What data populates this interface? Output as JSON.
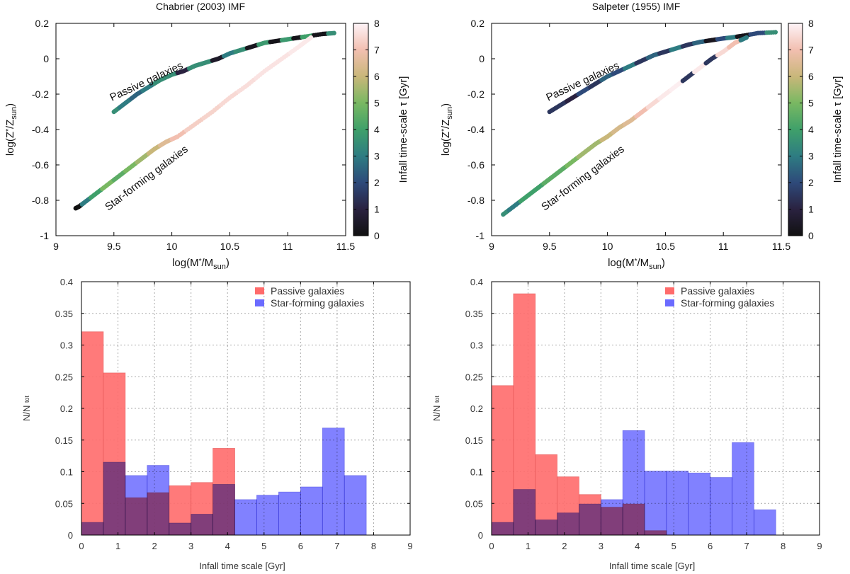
{
  "chart_data": [
    {
      "id": "scatter-chabrier",
      "type": "scatter",
      "title": "Chabrier (2003) IMF",
      "xlabel": "log(M*/Msun)",
      "ylabel": "log(Z*/Zsun)",
      "xlim": [
        9,
        11.5
      ],
      "ylim": [
        -1,
        0.2
      ],
      "xticks": [
        "9",
        "9.5",
        "10",
        "10.5",
        "11",
        "11.5"
      ],
      "yticks": [
        "-1",
        "-0.8",
        "-0.6",
        "-0.4",
        "-0.2",
        "0",
        "0.2"
      ],
      "colorbar": {
        "label": "Infall time-scale τ  [Gyr]",
        "range": [
          0,
          8
        ],
        "ticks": [
          "0",
          "1",
          "2",
          "3",
          "4",
          "5",
          "6",
          "7",
          "8"
        ]
      },
      "annotations": [
        "Passive galaxies",
        "Star-forming galaxies"
      ],
      "series": [
        {
          "name": "Passive galaxies",
          "x_range": [
            9.5,
            11.4
          ],
          "points": [
            [
              9.5,
              -0.3,
              3.5
            ],
            [
              9.6,
              -0.25,
              3
            ],
            [
              9.7,
              -0.2,
              2.5
            ],
            [
              9.8,
              -0.16,
              3
            ],
            [
              9.9,
              -0.12,
              3.5
            ],
            [
              10.0,
              -0.09,
              3.5
            ],
            [
              10.1,
              -0.07,
              1
            ],
            [
              10.2,
              -0.04,
              3.5
            ],
            [
              10.3,
              -0.02,
              3.5
            ],
            [
              10.4,
              0.0,
              0.5
            ],
            [
              10.5,
              0.03,
              3
            ],
            [
              10.6,
              0.05,
              3.5
            ],
            [
              10.7,
              0.07,
              0.3
            ],
            [
              10.8,
              0.09,
              3.8
            ],
            [
              10.9,
              0.1,
              0.2
            ],
            [
              11.0,
              0.11,
              3.8
            ],
            [
              11.1,
              0.12,
              0.2
            ],
            [
              11.15,
              0.125,
              4
            ],
            [
              11.3,
              0.14,
              0.2
            ],
            [
              11.4,
              0.145,
              3.5
            ]
          ]
        },
        {
          "name": "Star-forming galaxies",
          "x_range": [
            9.17,
            11.2
          ],
          "points": [
            [
              9.17,
              -0.845,
              0
            ],
            [
              9.2,
              -0.835,
              0
            ],
            [
              9.25,
              -0.81,
              3
            ],
            [
              9.35,
              -0.76,
              4
            ],
            [
              9.45,
              -0.71,
              5
            ],
            [
              9.55,
              -0.66,
              4.5
            ],
            [
              9.65,
              -0.61,
              5
            ],
            [
              9.75,
              -0.56,
              5.5
            ],
            [
              9.85,
              -0.51,
              6
            ],
            [
              9.95,
              -0.47,
              6.5
            ],
            [
              10.05,
              -0.44,
              7
            ],
            [
              10.2,
              -0.37,
              7.3
            ],
            [
              10.35,
              -0.3,
              7.4
            ],
            [
              10.5,
              -0.22,
              7.5
            ],
            [
              10.65,
              -0.15,
              7.6
            ],
            [
              10.8,
              -0.07,
              7.7
            ],
            [
              10.95,
              0.0,
              7.7
            ],
            [
              11.1,
              0.07,
              7.8
            ],
            [
              11.2,
              0.12,
              7.8
            ]
          ]
        }
      ]
    },
    {
      "id": "scatter-salpeter",
      "type": "scatter",
      "title": "Salpeter (1955) IMF",
      "xlabel": "log(M*/Msun)",
      "ylabel": "log(Z*/Zsun)",
      "xlim": [
        9,
        11.5
      ],
      "ylim": [
        -1,
        0.2
      ],
      "xticks": [
        "9",
        "9.5",
        "10",
        "10.5",
        "11",
        "11.5"
      ],
      "yticks": [
        "-1",
        "-0.8",
        "-0.6",
        "-0.4",
        "-0.2",
        "0",
        "0.2"
      ],
      "colorbar": {
        "label": "Infall time-scale τ  [Gyr]",
        "range": [
          0,
          8
        ],
        "ticks": [
          "0",
          "1",
          "2",
          "3",
          "4",
          "5",
          "6",
          "7",
          "8"
        ]
      },
      "annotations": [
        "Passive galaxies",
        "Star-forming galaxies"
      ],
      "series": [
        {
          "name": "Passive galaxies",
          "x_range": [
            9.5,
            11.45
          ],
          "points": [
            [
              9.5,
              -0.3,
              1.5
            ],
            [
              9.6,
              -0.26,
              1.5
            ],
            [
              9.7,
              -0.22,
              1
            ],
            [
              9.8,
              -0.18,
              2
            ],
            [
              9.9,
              -0.14,
              1.5
            ],
            [
              10.0,
              -0.1,
              2.5
            ],
            [
              10.1,
              -0.07,
              2
            ],
            [
              10.2,
              -0.04,
              3
            ],
            [
              10.3,
              -0.01,
              1.5
            ],
            [
              10.4,
              0.02,
              2.5
            ],
            [
              10.5,
              0.04,
              1.5
            ],
            [
              10.6,
              0.06,
              3
            ],
            [
              10.7,
              0.08,
              1.5
            ],
            [
              10.8,
              0.095,
              2.5
            ],
            [
              10.9,
              0.105,
              0.3
            ],
            [
              11.0,
              0.115,
              2
            ],
            [
              11.07,
              0.12,
              3
            ],
            [
              11.17,
              0.13,
              0.2
            ],
            [
              11.3,
              0.145,
              2
            ],
            [
              11.45,
              0.15,
              3.5
            ]
          ]
        },
        {
          "name": "Star-forming galaxies",
          "x_range": [
            9.1,
            11.2
          ],
          "points": [
            [
              9.1,
              -0.88,
              3.5
            ],
            [
              9.2,
              -0.83,
              3
            ],
            [
              9.3,
              -0.78,
              4
            ],
            [
              9.4,
              -0.73,
              4
            ],
            [
              9.5,
              -0.68,
              4.5
            ],
            [
              9.6,
              -0.63,
              4.5
            ],
            [
              9.7,
              -0.58,
              5
            ],
            [
              9.8,
              -0.53,
              5.5
            ],
            [
              9.9,
              -0.48,
              5.5
            ],
            [
              10.0,
              -0.44,
              6
            ],
            [
              10.1,
              -0.39,
              6.3
            ],
            [
              10.2,
              -0.35,
              6.5
            ],
            [
              10.3,
              -0.3,
              7
            ],
            [
              10.4,
              -0.25,
              7.5
            ],
            [
              10.5,
              -0.2,
              7.8
            ],
            [
              10.6,
              -0.15,
              7.9
            ],
            [
              10.7,
              -0.1,
              1.5
            ],
            [
              10.8,
              -0.05,
              7.8
            ],
            [
              10.9,
              0.0,
              1.5
            ],
            [
              11.0,
              0.04,
              7.5
            ],
            [
              11.1,
              0.09,
              7
            ],
            [
              11.2,
              0.12,
              3
            ]
          ]
        }
      ]
    },
    {
      "id": "hist-chabrier",
      "type": "bar",
      "title": "",
      "xlabel": "Infall time scale [Gyr]",
      "ylabel": "N/N tot",
      "xlim": [
        0,
        9
      ],
      "ylim": [
        0,
        0.4
      ],
      "xticks": [
        "0",
        "1",
        "2",
        "3",
        "4",
        "5",
        "6",
        "7",
        "8",
        "9"
      ],
      "yticks": [
        "0",
        "0.05",
        "0.1",
        "0.15",
        "0.2",
        "0.25",
        "0.3",
        "0.35",
        "0.4"
      ],
      "grid": true,
      "legend_position": "top-right",
      "bin_edges": [
        0,
        0.6,
        1.2,
        1.8,
        2.4,
        3.0,
        3.6,
        4.2,
        4.8,
        5.4,
        6.0,
        6.6,
        7.2,
        7.8
      ],
      "series": [
        {
          "name": "Passive galaxies",
          "color": "#ff6b6b",
          "values": [
            0.321,
            0.256,
            0.059,
            0.067,
            0.078,
            0.083,
            0.137,
            0,
            0,
            0,
            0,
            0,
            0
          ]
        },
        {
          "name": "Star-forming galaxies",
          "color": "#6b6bff",
          "values": [
            0.02,
            0.115,
            0.094,
            0.11,
            0.019,
            0.033,
            0.08,
            0.056,
            0.063,
            0.068,
            0.076,
            0.169,
            0.094
          ]
        }
      ]
    },
    {
      "id": "hist-salpeter",
      "type": "bar",
      "title": "",
      "xlabel": "Infall time scale [Gyr]",
      "ylabel": "N/N tot",
      "xlim": [
        0,
        9
      ],
      "ylim": [
        0,
        0.4
      ],
      "xticks": [
        "0",
        "1",
        "2",
        "3",
        "4",
        "5",
        "6",
        "7",
        "8",
        "9"
      ],
      "yticks": [
        "0",
        "0.05",
        "0.1",
        "0.15",
        "0.2",
        "0.25",
        "0.3",
        "0.35",
        "0.4"
      ],
      "grid": true,
      "legend_position": "top-right",
      "bin_edges": [
        0,
        0.6,
        1.2,
        1.8,
        2.4,
        3.0,
        3.6,
        4.2,
        4.8,
        5.4,
        6.0,
        6.6,
        7.2,
        7.8
      ],
      "series": [
        {
          "name": "Passive galaxies",
          "color": "#ff6b6b",
          "values": [
            0.236,
            0.381,
            0.127,
            0.092,
            0.064,
            0.044,
            0.049,
            0.007,
            0,
            0,
            0,
            0,
            0
          ]
        },
        {
          "name": "Star-forming galaxies",
          "color": "#6b6bff",
          "values": [
            0.02,
            0.072,
            0.024,
            0.035,
            0.049,
            0.056,
            0.165,
            0.101,
            0.101,
            0.098,
            0.091,
            0.146,
            0.04
          ]
        }
      ]
    }
  ],
  "colormap": [
    "#111111",
    "#2a2240",
    "#2e4a7a",
    "#2e7c82",
    "#3fa06a",
    "#79b862",
    "#c9b77a",
    "#f2bfb0",
    "#fdf3f7"
  ]
}
